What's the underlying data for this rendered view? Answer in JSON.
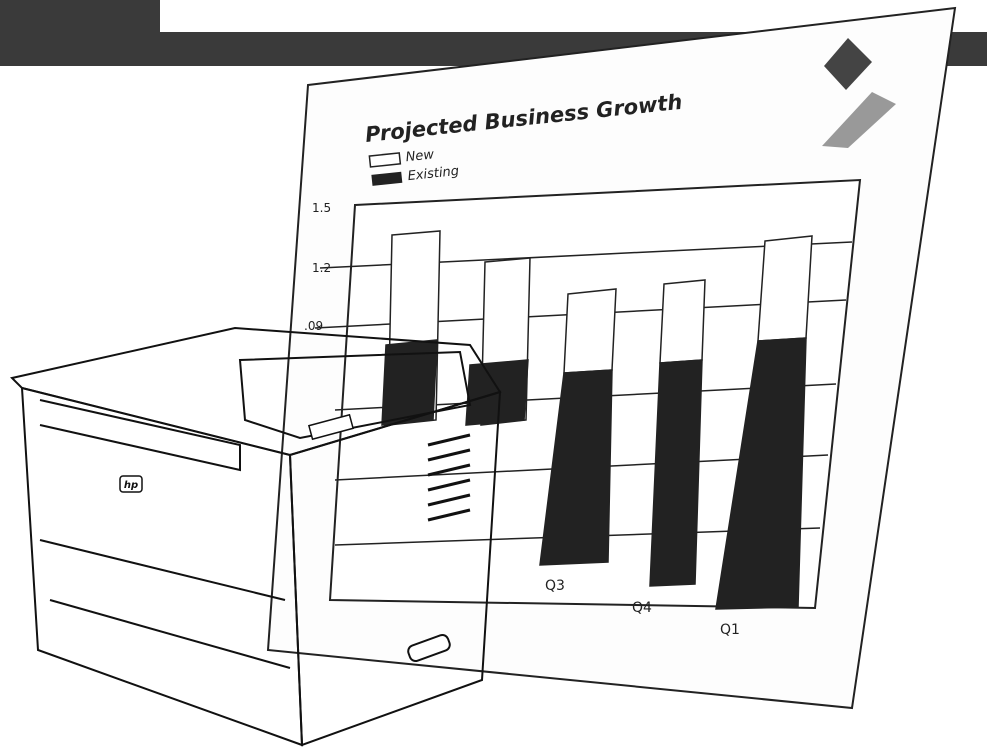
{
  "chart_sheet": {
    "title": "Projected Business Growth",
    "legend": [
      "New",
      "Existing"
    ],
    "y_axis_labels": [
      "1.5",
      "1.2",
      ".09"
    ],
    "x_axis_labels": [
      "Q3",
      "Q4",
      "Q1"
    ]
  },
  "printer": {
    "logo": "hp"
  }
}
